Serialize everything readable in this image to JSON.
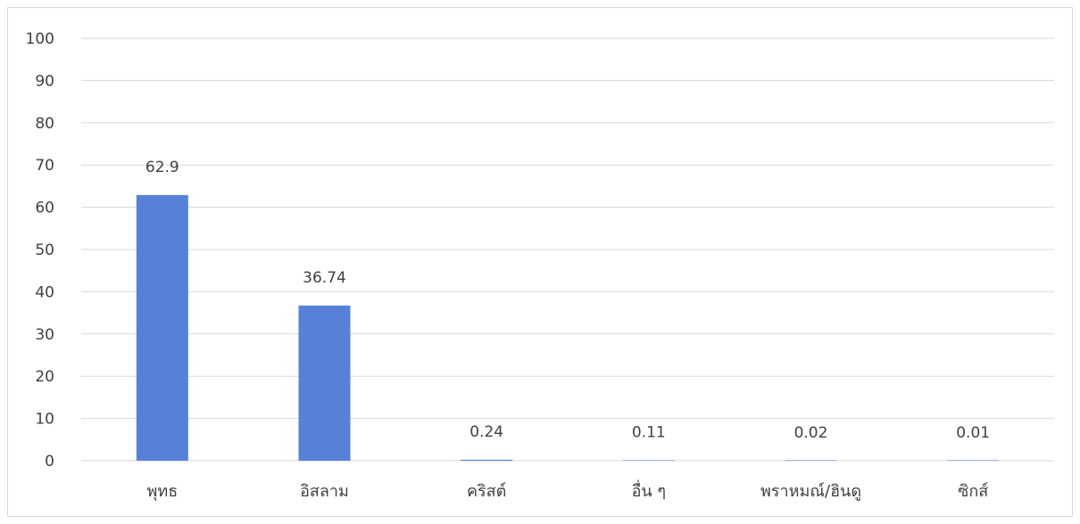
{
  "chart_data": {
    "type": "bar",
    "categories": [
      "พุทธ",
      "อิสลาม",
      "คริสต์",
      "อื่น ๆ",
      "พราหมณ์/ฮินดู",
      "ซิกส์"
    ],
    "values": [
      62.9,
      36.74,
      0.24,
      0.11,
      0.02,
      0.01
    ],
    "data_labels": [
      "62.9",
      "36.74",
      "0.24",
      "0.11",
      "0.02",
      "0.01"
    ],
    "ylim": [
      0,
      100
    ],
    "yticks": [
      0,
      10,
      20,
      30,
      40,
      50,
      60,
      70,
      80,
      90,
      100
    ],
    "grid": true,
    "legend": "none",
    "bar_color": "#5781d9",
    "grid_color": "#d9d9d9",
    "text_color": "#404040"
  }
}
